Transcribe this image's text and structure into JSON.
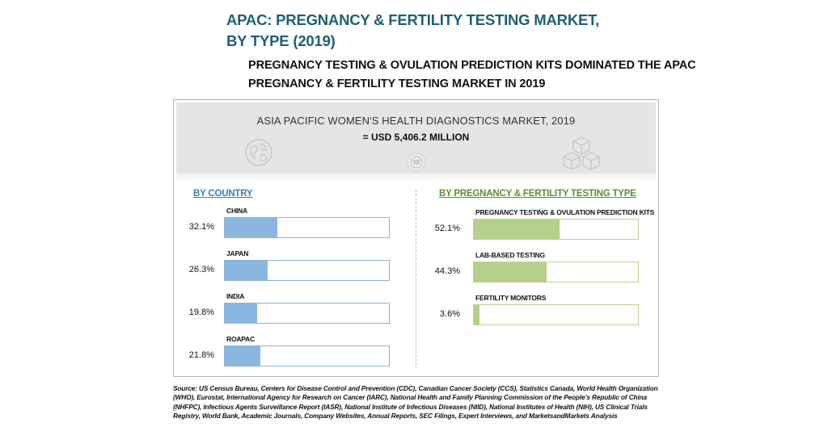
{
  "header": {
    "title_line1": "APAC: PREGNANCY & FERTILITY TESTING MARKET,",
    "title_line2": "BY TYPE (2019)",
    "subtitle_line1": "PREGNANCY TESTING & OVULATION PREDICTION KITS DOMINATED THE APAC",
    "subtitle_line2": "PREGNANCY & FERTILITY TESTING MARKET IN 2019"
  },
  "banner": {
    "title": "ASIA PACIFIC WOMEN'S HEALTH DIAGNOSTICS MARKET, 2019",
    "value": "= USD 5,406.2 MILLION",
    "icons": [
      "globe-icon",
      "medal-icon",
      "cubes-icon"
    ]
  },
  "colors": {
    "title": "#1f5f73",
    "country_accent": "#3b7fb6",
    "country_fill": "#8bb6df",
    "type_accent": "#5c8f2a",
    "type_fill": "#b3d18a",
    "banner_bg": "#e5e5e5"
  },
  "chart_data": [
    {
      "type": "bar",
      "orientation": "horizontal",
      "title": "BY COUNTRY",
      "categories": [
        "CHINA",
        "JAPAN",
        "INDIA",
        "ROAPAC"
      ],
      "values": [
        32.1,
        26.3,
        19.8,
        21.8
      ],
      "value_labels": [
        "32.1%",
        "26.3%",
        "19.8%",
        "21.8%"
      ],
      "unit": "%",
      "xlim": [
        0,
        100
      ]
    },
    {
      "type": "bar",
      "orientation": "horizontal",
      "title": "BY PREGNANCY & FERTILITY TESTING TYPE",
      "categories": [
        "PREGNANCY TESTING & OVULATION PREDICTION KITS",
        "LAB-BASED TESTING",
        "FERTILITY MONITORS"
      ],
      "values": [
        52.1,
        44.3,
        3.6
      ],
      "value_labels": [
        "52.1%",
        "44.3%",
        "3.6%"
      ],
      "unit": "%",
      "xlim": [
        0,
        100
      ]
    }
  ],
  "source": "Source: US Census Bureau, Centers for Disease Control and Prevention (CDC), Canadian Cancer Society (CCS), Statistics Canada, World Health Organization (WHO), Eurostat, International Agency for Research on Cancer (IARC), National Health and Family Planning Commission of the People's Republic of China (NHFPC), Infectious Agents Surveillance Report (IASR), National Institute of Infectious Diseases (NIID), National Institutes of Health (NIH), US Clinical Trials Registry, World Bank, Academic Journals, Company Websites, Annual Reports, SEC Filings, Expert Interviews, and MarketsandMarkets Analysis"
}
